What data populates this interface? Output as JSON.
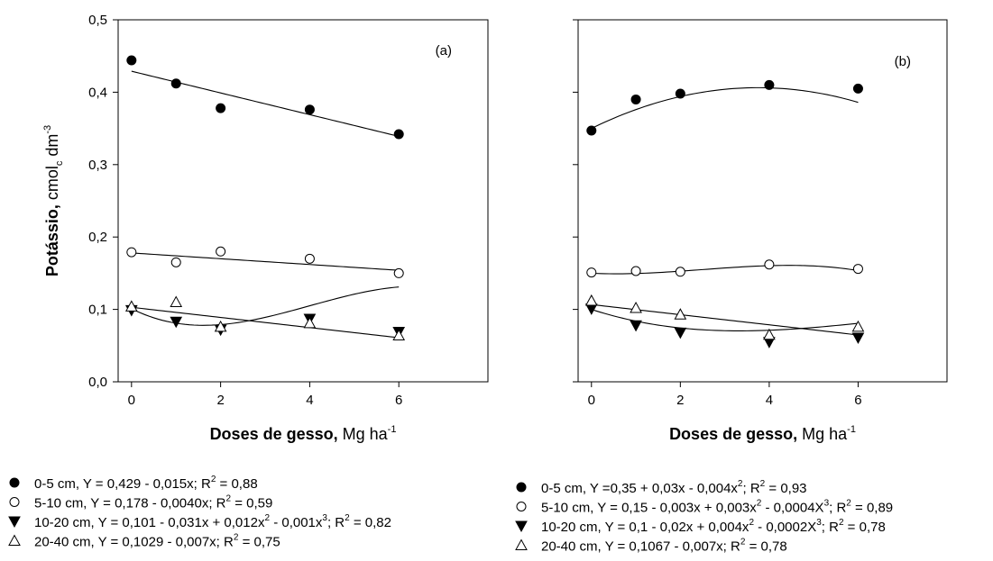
{
  "chart_data": [
    {
      "type": "scatter",
      "panel_label": "(a)",
      "xlabel_bold": "Doses de gesso,",
      "xlabel_unit": "Mg ha",
      "xlabel_sup": "-1",
      "ylabel_bold": "Potássio,",
      "ylabel_unit_pre": " cmol",
      "ylabel_unit_sub": "c",
      "ylabel_unit_mid": " dm",
      "ylabel_unit_sup": "-3",
      "x_ticks": [
        "0",
        "2",
        "4",
        "6"
      ],
      "y_ticks": [
        "0,0",
        "0,1",
        "0,2",
        "0,3",
        "0,4",
        "0,5"
      ],
      "xlim": [
        -0.3,
        8
      ],
      "ylim": [
        0,
        0.5
      ],
      "series": [
        {
          "marker": "filled-circle",
          "x": [
            0,
            1,
            2,
            4,
            6
          ],
          "y": [
            0.444,
            0.412,
            0.378,
            0.376,
            0.342
          ],
          "fit": {
            "type": "poly",
            "coef": [
              0.429,
              -0.015
            ]
          },
          "legend": {
            "parts": [
              "0-5 cm, Y = 0,429 - 0,015x; R",
              "2",
              " = 0,88"
            ],
            "sup": [
              1
            ]
          }
        },
        {
          "marker": "open-circle",
          "x": [
            0,
            1,
            2,
            4,
            6
          ],
          "y": [
            0.179,
            0.165,
            0.18,
            0.17,
            0.15
          ],
          "fit": {
            "type": "poly",
            "coef": [
              0.178,
              -0.004
            ]
          },
          "legend": {
            "parts": [
              "5-10 cm, Y = 0,178 - 0,0040x; R",
              "2",
              " = 0,59"
            ],
            "sup": [
              1
            ]
          }
        },
        {
          "marker": "filled-triangle-down",
          "x": [
            0,
            1,
            2,
            4,
            6
          ],
          "y": [
            0.099,
            0.083,
            0.072,
            0.087,
            0.069
          ],
          "fit": {
            "type": "poly",
            "coef": [
              0.101,
              -0.031,
              0.012,
              -0.001
            ]
          },
          "legend": {
            "parts": [
              "10-20 cm, Y = 0,101 - 0,031x +  0,012x",
              "2",
              " - 0,001x",
              "3",
              "; R",
              "2",
              " = 0,82"
            ],
            "sup": [
              1,
              3,
              5
            ]
          }
        },
        {
          "marker": "open-triangle-up",
          "x": [
            0,
            1,
            2,
            4,
            6
          ],
          "y": [
            0.104,
            0.11,
            0.076,
            0.081,
            0.064
          ],
          "fit": {
            "type": "poly",
            "coef": [
              0.1029,
              -0.007
            ]
          },
          "legend": {
            "parts": [
              "20-40 cm, Y = 0,1029 - 0,007x; R",
              "2",
              " = 0,75"
            ],
            "sup": [
              1
            ]
          }
        }
      ]
    },
    {
      "type": "scatter",
      "panel_label": "(b)",
      "xlabel_bold": "Doses de gesso,",
      "xlabel_unit": "Mg ha",
      "xlabel_sup": "-1",
      "x_ticks": [
        "0",
        "2",
        "4",
        "6"
      ],
      "xlim": [
        -0.3,
        8
      ],
      "ylim": [
        0,
        0.5
      ],
      "series": [
        {
          "marker": "filled-circle",
          "x": [
            0,
            1,
            2,
            4,
            6
          ],
          "y": [
            0.347,
            0.39,
            0.398,
            0.41,
            0.405
          ],
          "fit": {
            "type": "poly",
            "coef": [
              0.35,
              0.03,
              -0.004
            ]
          },
          "legend": {
            "parts": [
              "0-5 cm, Y =0,35 + 0,03x - 0,004x",
              "2",
              "; R",
              "2",
              " = 0,93"
            ],
            "sup": [
              1,
              3
            ]
          }
        },
        {
          "marker": "open-circle",
          "x": [
            0,
            1,
            2,
            4,
            6
          ],
          "y": [
            0.151,
            0.153,
            0.152,
            0.162,
            0.156
          ],
          "fit": {
            "type": "poly",
            "coef": [
              0.15,
              -0.003,
              0.003,
              -0.0004
            ]
          },
          "legend": {
            "parts": [
              "5-10 cm, Y = 0,15 - 0,003x + 0,003x",
              "2",
              " - 0,0004X",
              "3",
              "; R",
              "2",
              " = 0,89"
            ],
            "sup": [
              1,
              3,
              5
            ]
          }
        },
        {
          "marker": "filled-triangle-down",
          "x": [
            0,
            1,
            2,
            4,
            6
          ],
          "y": [
            0.101,
            0.078,
            0.068,
            0.055,
            0.061
          ],
          "fit": {
            "type": "poly",
            "coef": [
              0.1,
              -0.02,
              0.004,
              -0.0002
            ]
          },
          "legend": {
            "parts": [
              "10-20 cm, Y = 0,1 - 0,02x + 0,004x",
              "2",
              " - 0,0002X",
              "3",
              "; R",
              "2",
              " = 0,78"
            ],
            "sup": [
              1,
              3,
              5
            ]
          }
        },
        {
          "marker": "open-triangle-up",
          "x": [
            0,
            1,
            2,
            4,
            6
          ],
          "y": [
            0.112,
            0.102,
            0.093,
            0.065,
            0.076
          ],
          "fit": {
            "type": "poly",
            "coef": [
              0.1067,
              -0.007
            ]
          },
          "legend": {
            "parts": [
              "20-40 cm, Y = 0,1067 - 0,007x; R",
              "2",
              " = 0,78"
            ],
            "sup": [
              1
            ]
          }
        }
      ]
    }
  ]
}
